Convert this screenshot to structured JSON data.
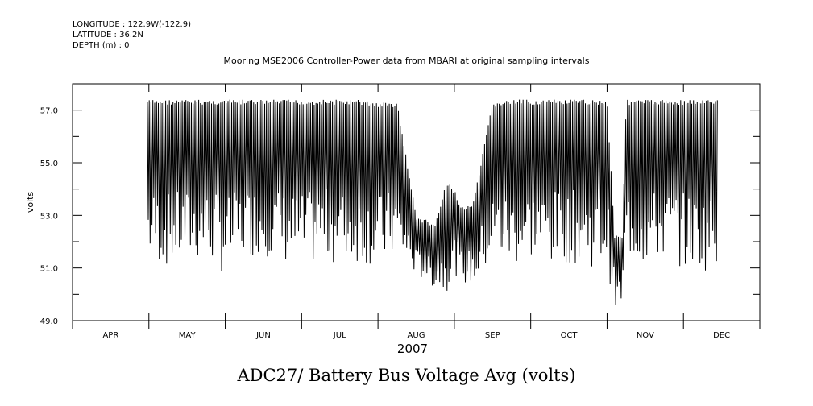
{
  "header": {
    "longitude": "LONGITUDE : 122.9W(-122.9)",
    "latitude": "LATITUDE : 36.2N",
    "depth": "DEPTH (m) : 0"
  },
  "chart_data": {
    "type": "line",
    "title": "Mooring MSE2006 Controller-Power data from MBARI at original sampling intervals",
    "bottom_title": "ADC27/ Battery Bus Voltage Avg (volts)",
    "ylabel": "volts",
    "xlabel_year": "2007",
    "ylim": [
      49.0,
      58.0
    ],
    "yticks": [
      49.0,
      51.0,
      53.0,
      55.0,
      57.0
    ],
    "ytick_labels": [
      "49.0",
      "51.0",
      "53.0",
      "55.0",
      "57.0"
    ],
    "x_months": [
      "APR",
      "MAY",
      "JUN",
      "JUL",
      "AUG",
      "SEP",
      "OCT",
      "NOV",
      "DEC"
    ],
    "x_range_months": [
      0,
      9
    ],
    "line_color": "#000000",
    "series": [
      {
        "x": [
          0.98,
          1.25,
          1.5,
          1.75,
          2.0,
          2.25,
          2.5,
          2.75,
          3.0,
          3.25,
          3.5,
          3.75,
          4.0,
          4.25,
          4.5,
          4.75,
          4.9,
          5.0,
          5.1,
          5.25,
          5.5,
          5.75,
          6.0,
          6.25,
          6.5,
          6.75,
          7.0,
          7.1,
          7.2,
          7.25,
          7.4,
          7.5,
          7.75,
          8.0,
          8.25,
          8.45
        ],
        "lo": [
          51.3,
          51.0,
          51.2,
          51.3,
          50.7,
          51.4,
          51.5,
          51.2,
          50.9,
          51.3,
          51.1,
          51.2,
          51.0,
          51.4,
          50.7,
          50.2,
          50.1,
          50.8,
          50.4,
          50.3,
          51.2,
          51.0,
          51.3,
          51.1,
          51.2,
          51.0,
          51.1,
          49.3,
          49.5,
          51.4,
          51.2,
          51.0,
          51.3,
          51.0,
          50.9,
          50.9
        ],
        "hi": [
          57.4,
          57.4,
          57.4,
          57.4,
          57.4,
          57.4,
          57.4,
          57.4,
          57.4,
          57.4,
          57.4,
          57.4,
          57.3,
          57.3,
          53.0,
          52.7,
          54.3,
          54.0,
          53.3,
          53.5,
          57.3,
          57.4,
          57.4,
          57.4,
          57.4,
          57.4,
          57.4,
          52.3,
          52.3,
          57.4,
          57.4,
          57.4,
          57.4,
          57.4,
          57.4,
          57.4
        ]
      }
    ]
  }
}
